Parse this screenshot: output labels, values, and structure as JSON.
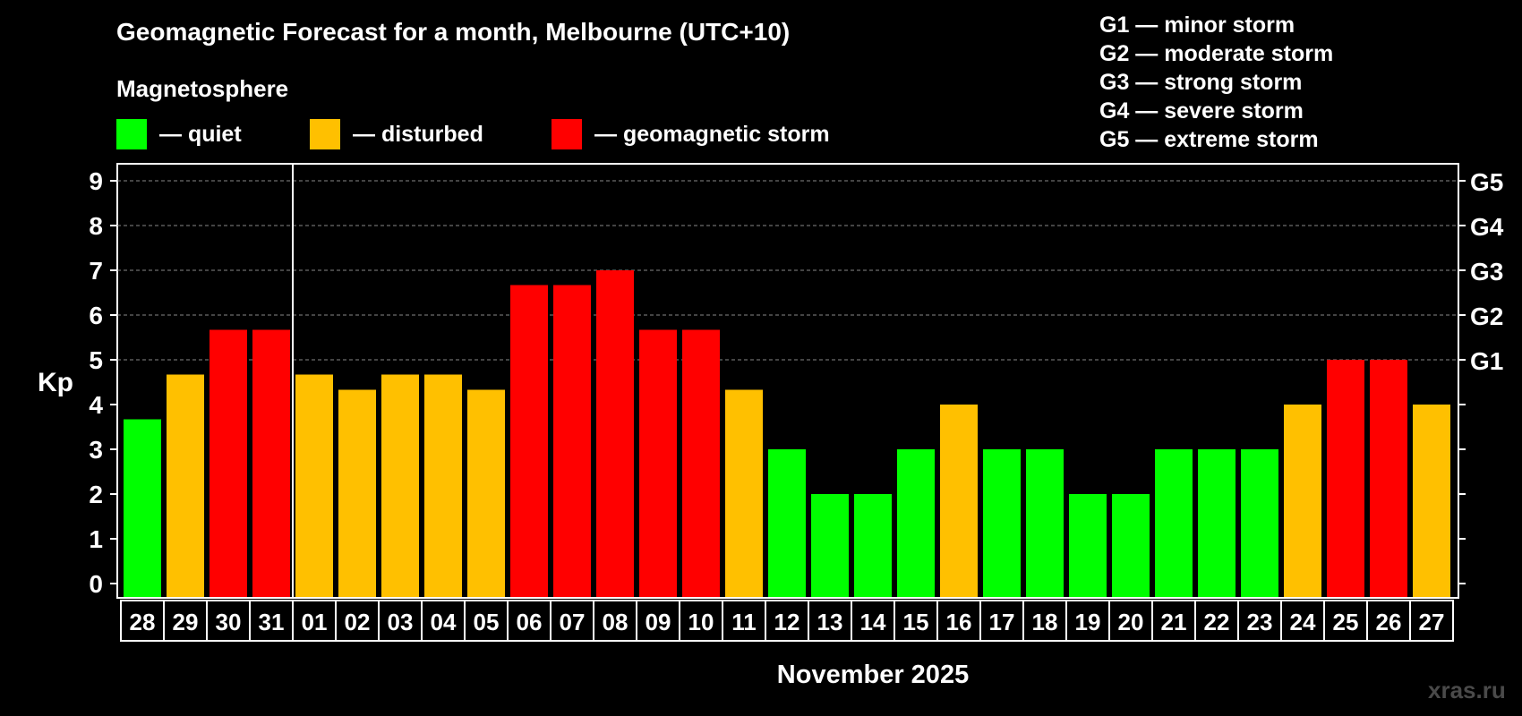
{
  "title": "Geomagnetic Forecast for a month, Melbourne (UTC+10)",
  "subtitle": "Magnetosphere",
  "legend": [
    {
      "label": "— quiet",
      "color": "#00ff00"
    },
    {
      "label": "— disturbed",
      "color": "#ffc000"
    },
    {
      "label": "— geomagnetic storm",
      "color": "#ff0000"
    }
  ],
  "g_scale": [
    "G1 — minor storm",
    "G2 — moderate storm",
    "G3 — strong storm",
    "G4 — severe storm",
    "G5 — extreme storm"
  ],
  "watermark": "xras.ru",
  "chart_data": {
    "type": "bar",
    "ylabel": "Kp",
    "xlabel": "November 2025",
    "ylim": [
      0,
      9
    ],
    "yticks": [
      "0",
      "1",
      "2",
      "3",
      "4",
      "5",
      "6",
      "7",
      "8",
      "9"
    ],
    "right_axis": [
      {
        "kp": 5,
        "label": "G1"
      },
      {
        "kp": 6,
        "label": "G2"
      },
      {
        "kp": 7,
        "label": "G3"
      },
      {
        "kp": 8,
        "label": "G4"
      },
      {
        "kp": 9,
        "label": "G5"
      }
    ],
    "grid": "dashed horizontal at Kp 5 to 9",
    "month_divider_after": "31",
    "categories": [
      "28",
      "29",
      "30",
      "31",
      "01",
      "02",
      "03",
      "04",
      "05",
      "06",
      "07",
      "08",
      "09",
      "10",
      "11",
      "12",
      "13",
      "14",
      "15",
      "16",
      "17",
      "18",
      "19",
      "20",
      "21",
      "22",
      "23",
      "24",
      "25",
      "26",
      "27"
    ],
    "values": [
      3.67,
      4.67,
      5.67,
      5.67,
      4.67,
      4.33,
      4.67,
      4.67,
      4.33,
      6.67,
      6.67,
      7,
      5.67,
      5.67,
      4.33,
      3,
      2,
      2,
      3,
      4,
      3,
      3,
      2,
      2,
      3,
      3,
      3,
      4,
      5,
      5,
      4
    ],
    "levels": [
      "quiet",
      "disturbed",
      "storm",
      "storm",
      "disturbed",
      "disturbed",
      "disturbed",
      "disturbed",
      "disturbed",
      "storm",
      "storm",
      "storm",
      "storm",
      "storm",
      "disturbed",
      "quiet",
      "quiet",
      "quiet",
      "quiet",
      "disturbed",
      "quiet",
      "quiet",
      "quiet",
      "quiet",
      "quiet",
      "quiet",
      "quiet",
      "disturbed",
      "storm",
      "storm",
      "disturbed"
    ],
    "colors": {
      "quiet": "#00ff00",
      "disturbed": "#ffc000",
      "storm": "#ff0000"
    }
  }
}
